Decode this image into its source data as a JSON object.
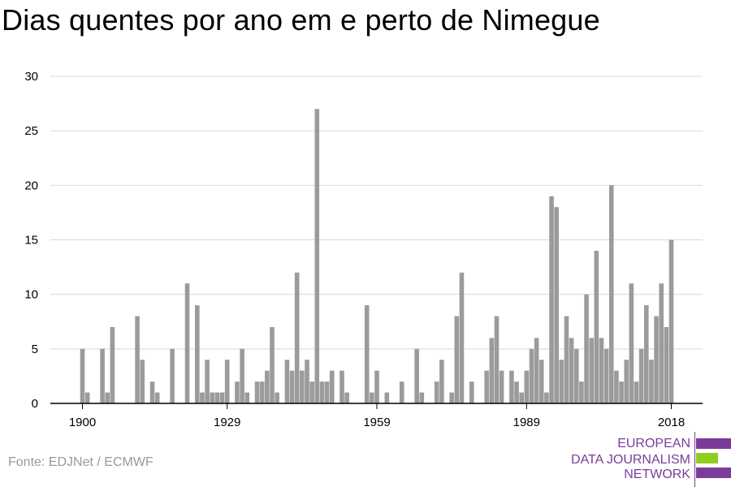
{
  "title": "Dias quentes por ano em e perto de Nimegue",
  "source": "Fonte: EDJNet / ECMWF",
  "logo": {
    "lines": [
      "EUROPEAN",
      "DATA JOURNALISM",
      "NETWORK"
    ],
    "colors": {
      "purple": "#7b3c99",
      "green": "#8fce1f"
    }
  },
  "chart_data": {
    "type": "bar",
    "title": "Dias quentes por ano em e perto de Nimegue",
    "xlabel": "",
    "ylabel": "",
    "ylim": [
      0,
      30
    ],
    "yticks": [
      0,
      5,
      10,
      15,
      20,
      25,
      30
    ],
    "xticks": [
      1900,
      1929,
      1959,
      1989,
      2018
    ],
    "grid": true,
    "bar_color": "#9b9b9b",
    "x": [
      1900,
      1901,
      1902,
      1903,
      1904,
      1905,
      1906,
      1907,
      1908,
      1909,
      1910,
      1911,
      1912,
      1913,
      1914,
      1915,
      1916,
      1917,
      1918,
      1919,
      1920,
      1921,
      1922,
      1923,
      1924,
      1925,
      1926,
      1927,
      1928,
      1929,
      1930,
      1931,
      1932,
      1933,
      1934,
      1935,
      1936,
      1937,
      1938,
      1939,
      1940,
      1941,
      1942,
      1943,
      1944,
      1945,
      1946,
      1947,
      1948,
      1949,
      1950,
      1951,
      1952,
      1953,
      1954,
      1955,
      1956,
      1957,
      1958,
      1959,
      1960,
      1961,
      1962,
      1963,
      1964,
      1965,
      1966,
      1967,
      1968,
      1969,
      1970,
      1971,
      1972,
      1973,
      1974,
      1975,
      1976,
      1977,
      1978,
      1979,
      1980,
      1981,
      1982,
      1983,
      1984,
      1985,
      1986,
      1987,
      1988,
      1989,
      1990,
      1991,
      1992,
      1993,
      1994,
      1995,
      1996,
      1997,
      1998,
      1999,
      2000,
      2001,
      2002,
      2003,
      2004,
      2005,
      2006,
      2007,
      2008,
      2009,
      2010,
      2011,
      2012,
      2013,
      2014,
      2015,
      2016,
      2017,
      2018
    ],
    "values": [
      5,
      1,
      0,
      0,
      5,
      1,
      7,
      0,
      0,
      0,
      0,
      8,
      4,
      0,
      2,
      1,
      0,
      0,
      5,
      0,
      0,
      11,
      0,
      9,
      1,
      4,
      1,
      1,
      1,
      4,
      0,
      2,
      5,
      1,
      0,
      2,
      2,
      3,
      7,
      1,
      0,
      4,
      3,
      12,
      3,
      4,
      2,
      27,
      2,
      2,
      3,
      0,
      3,
      1,
      0,
      0,
      0,
      9,
      1,
      3,
      0,
      1,
      0,
      0,
      2,
      0,
      0,
      5,
      1,
      0,
      0,
      2,
      4,
      0,
      1,
      8,
      12,
      0,
      2,
      0,
      0,
      3,
      6,
      8,
      3,
      0,
      3,
      2,
      1,
      3,
      5,
      6,
      4,
      1,
      19,
      18,
      4,
      8,
      6,
      5,
      2,
      10,
      6,
      14,
      6,
      5,
      20,
      3,
      2,
      4,
      11,
      2,
      5,
      9,
      4,
      8,
      11,
      7,
      15
    ]
  }
}
